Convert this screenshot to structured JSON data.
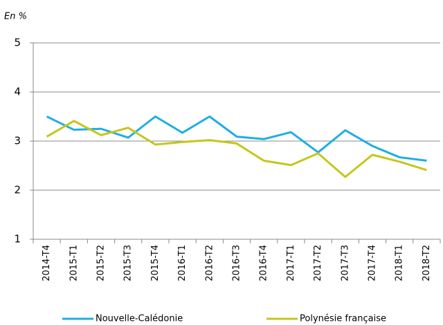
{
  "chart_data": {
    "type": "line",
    "y_label": "En %",
    "categories": [
      "2014-T4",
      "2015-T1",
      "2015-T2",
      "2015-T3",
      "2015-T4",
      "2016-T1",
      "2016-T2",
      "2016-T3",
      "2016-T4",
      "2017-T1",
      "2017-T2",
      "2017-T3",
      "2017-T4",
      "2018-T1",
      "2018-T2"
    ],
    "series": [
      {
        "name": "Nouvelle-Calédonie",
        "color": "#1eaee4",
        "values": [
          3.5,
          3.23,
          3.25,
          3.07,
          3.5,
          3.17,
          3.5,
          3.09,
          3.04,
          3.18,
          2.77,
          3.22,
          2.9,
          2.67,
          2.6
        ]
      },
      {
        "name": "Polynésie française",
        "color": "#c4c71a",
        "values": [
          3.09,
          3.41,
          3.12,
          3.27,
          2.93,
          2.98,
          3.02,
          2.95,
          2.6,
          2.51,
          2.75,
          2.27,
          2.72,
          2.58,
          2.41
        ]
      }
    ],
    "ylim": [
      1,
      5
    ],
    "yticks": [
      1,
      2,
      3,
      4,
      5
    ],
    "grid": true
  }
}
